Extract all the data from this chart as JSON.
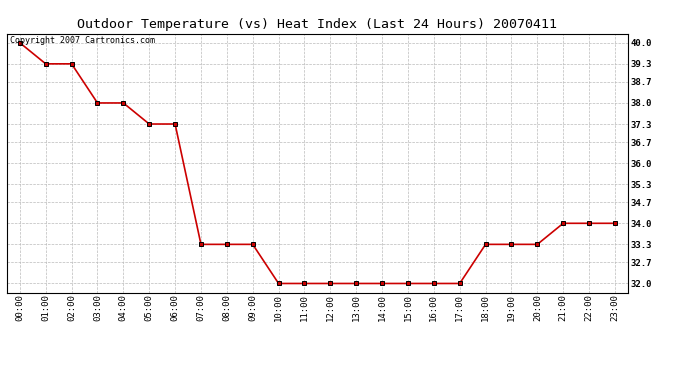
{
  "title": "Outdoor Temperature (vs) Heat Index (Last 24 Hours) 20070411",
  "copyright_text": "Copyright 2007 Cartronics.com",
  "x_labels": [
    "00:00",
    "01:00",
    "02:00",
    "03:00",
    "04:00",
    "05:00",
    "06:00",
    "07:00",
    "08:00",
    "09:00",
    "10:00",
    "11:00",
    "12:00",
    "13:00",
    "14:00",
    "15:00",
    "16:00",
    "17:00",
    "18:00",
    "19:00",
    "20:00",
    "21:00",
    "22:00",
    "23:00"
  ],
  "y_values": [
    40.0,
    39.3,
    39.3,
    38.0,
    38.0,
    37.3,
    37.3,
    33.3,
    33.3,
    33.3,
    32.0,
    32.0,
    32.0,
    32.0,
    32.0,
    32.0,
    32.0,
    32.0,
    33.3,
    33.3,
    33.3,
    34.0,
    34.0,
    34.0
  ],
  "y_ticks": [
    32.0,
    32.7,
    33.3,
    34.0,
    34.7,
    35.3,
    36.0,
    36.7,
    37.3,
    38.0,
    38.7,
    39.3,
    40.0
  ],
  "ylim": [
    31.7,
    40.3
  ],
  "line_color": "#cc0000",
  "marker_color": "#000000",
  "bg_color": "#ffffff",
  "grid_color": "#bbbbbb",
  "title_fontsize": 9.5,
  "copyright_fontsize": 6,
  "tick_fontsize": 6.5,
  "figwidth": 6.9,
  "figheight": 3.75,
  "dpi": 100
}
